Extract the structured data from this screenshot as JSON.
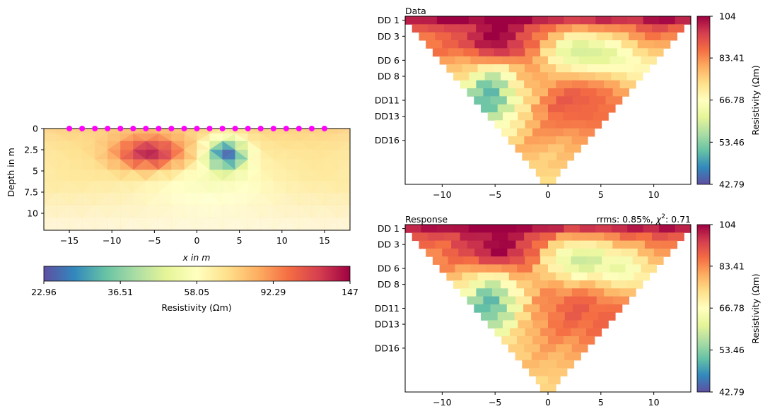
{
  "colors": {
    "colormap": [
      "#5e4fa2",
      "#3288bd",
      "#66c2a5",
      "#abdda4",
      "#e6f598",
      "#ffffbf",
      "#fee08b",
      "#fdae61",
      "#f46d43",
      "#d53e4f",
      "#9e0142"
    ],
    "electrode": "#ff00ff"
  },
  "chart_data": [
    {
      "type": "heatmap",
      "name": "inverted-model",
      "xlabel": "x in m",
      "ylabel": "Depth in m",
      "xlim": [
        -18,
        18
      ],
      "ylim": [
        12,
        0
      ],
      "xticks": [
        "−15",
        "−10",
        "−5",
        "0",
        "5",
        "10",
        "15"
      ],
      "xtick_values": [
        -15,
        -10,
        -5,
        0,
        5,
        10,
        15
      ],
      "yticks": [
        "0",
        "2.5",
        "5",
        "7.5",
        "10"
      ],
      "ytick_values": [
        0,
        2.5,
        5,
        7.5,
        10
      ],
      "electrodes_x": [
        -15,
        -13.5,
        -12,
        -10.5,
        -9,
        -7.5,
        -6,
        -4.5,
        -3,
        -1.5,
        0,
        1.5,
        3,
        4.5,
        6,
        7.5,
        9,
        10.5,
        12,
        13.5,
        15
      ],
      "anomalies": [
        {
          "kind": "conductive",
          "x": 3.5,
          "depth": 3.0,
          "value": 23
        },
        {
          "kind": "resistive",
          "x": -5.5,
          "depth": 3.0,
          "value": 147
        }
      ],
      "colorbar": {
        "label": "Resistivity (Ωm)",
        "orientation": "horizontal",
        "ticks": [
          "22.96",
          "36.51",
          "58.05",
          "92.29",
          "147"
        ],
        "range": [
          22.96,
          147
        ],
        "log": true
      }
    },
    {
      "type": "heatmap",
      "name": "pseudosection-data",
      "title": "Data",
      "xlim": [
        -13.5,
        13.5
      ],
      "xticks": [
        "−10",
        "−5",
        "0",
        "5",
        "10"
      ],
      "xtick_values": [
        -10,
        -5,
        0,
        5,
        10
      ],
      "yticks": [
        "DD 1",
        "DD 3",
        "DD 6",
        "DD 8",
        "DD11",
        "DD13",
        "DD16"
      ],
      "ytick_rows": [
        1,
        3,
        6,
        8,
        11,
        13,
        16
      ],
      "rows": 21,
      "colorbar": {
        "label": "Resistivity (Ωm)",
        "orientation": "vertical",
        "ticks": [
          "104",
          "83.41",
          "66.78",
          "53.46",
          "42.79"
        ],
        "range": [
          42.79,
          104
        ],
        "log": true
      }
    },
    {
      "type": "heatmap",
      "name": "pseudosection-response",
      "title": "Response",
      "annotation": "rrms: 0.85%, χ²: 0.71",
      "annotation_text": "rrms: 0.85%, ",
      "annotation_chi": "χ",
      "annotation_sup": "2",
      "annotation_tail": ": 0.71",
      "xlim": [
        -13.5,
        13.5
      ],
      "xticks": [
        "−10",
        "−5",
        "0",
        "5",
        "10"
      ],
      "xtick_values": [
        -10,
        -5,
        0,
        5,
        10
      ],
      "yticks": [
        "DD 1",
        "DD 3",
        "DD 6",
        "DD 8",
        "DD11",
        "DD13",
        "DD16"
      ],
      "ytick_rows": [
        1,
        3,
        6,
        8,
        11,
        13,
        16
      ],
      "rows": 21,
      "colorbar": {
        "label": "Resistivity (Ωm)",
        "orientation": "vertical",
        "ticks": [
          "104",
          "83.41",
          "66.78",
          "53.46",
          "42.79"
        ],
        "range": [
          42.79,
          104
        ],
        "log": true
      }
    }
  ]
}
